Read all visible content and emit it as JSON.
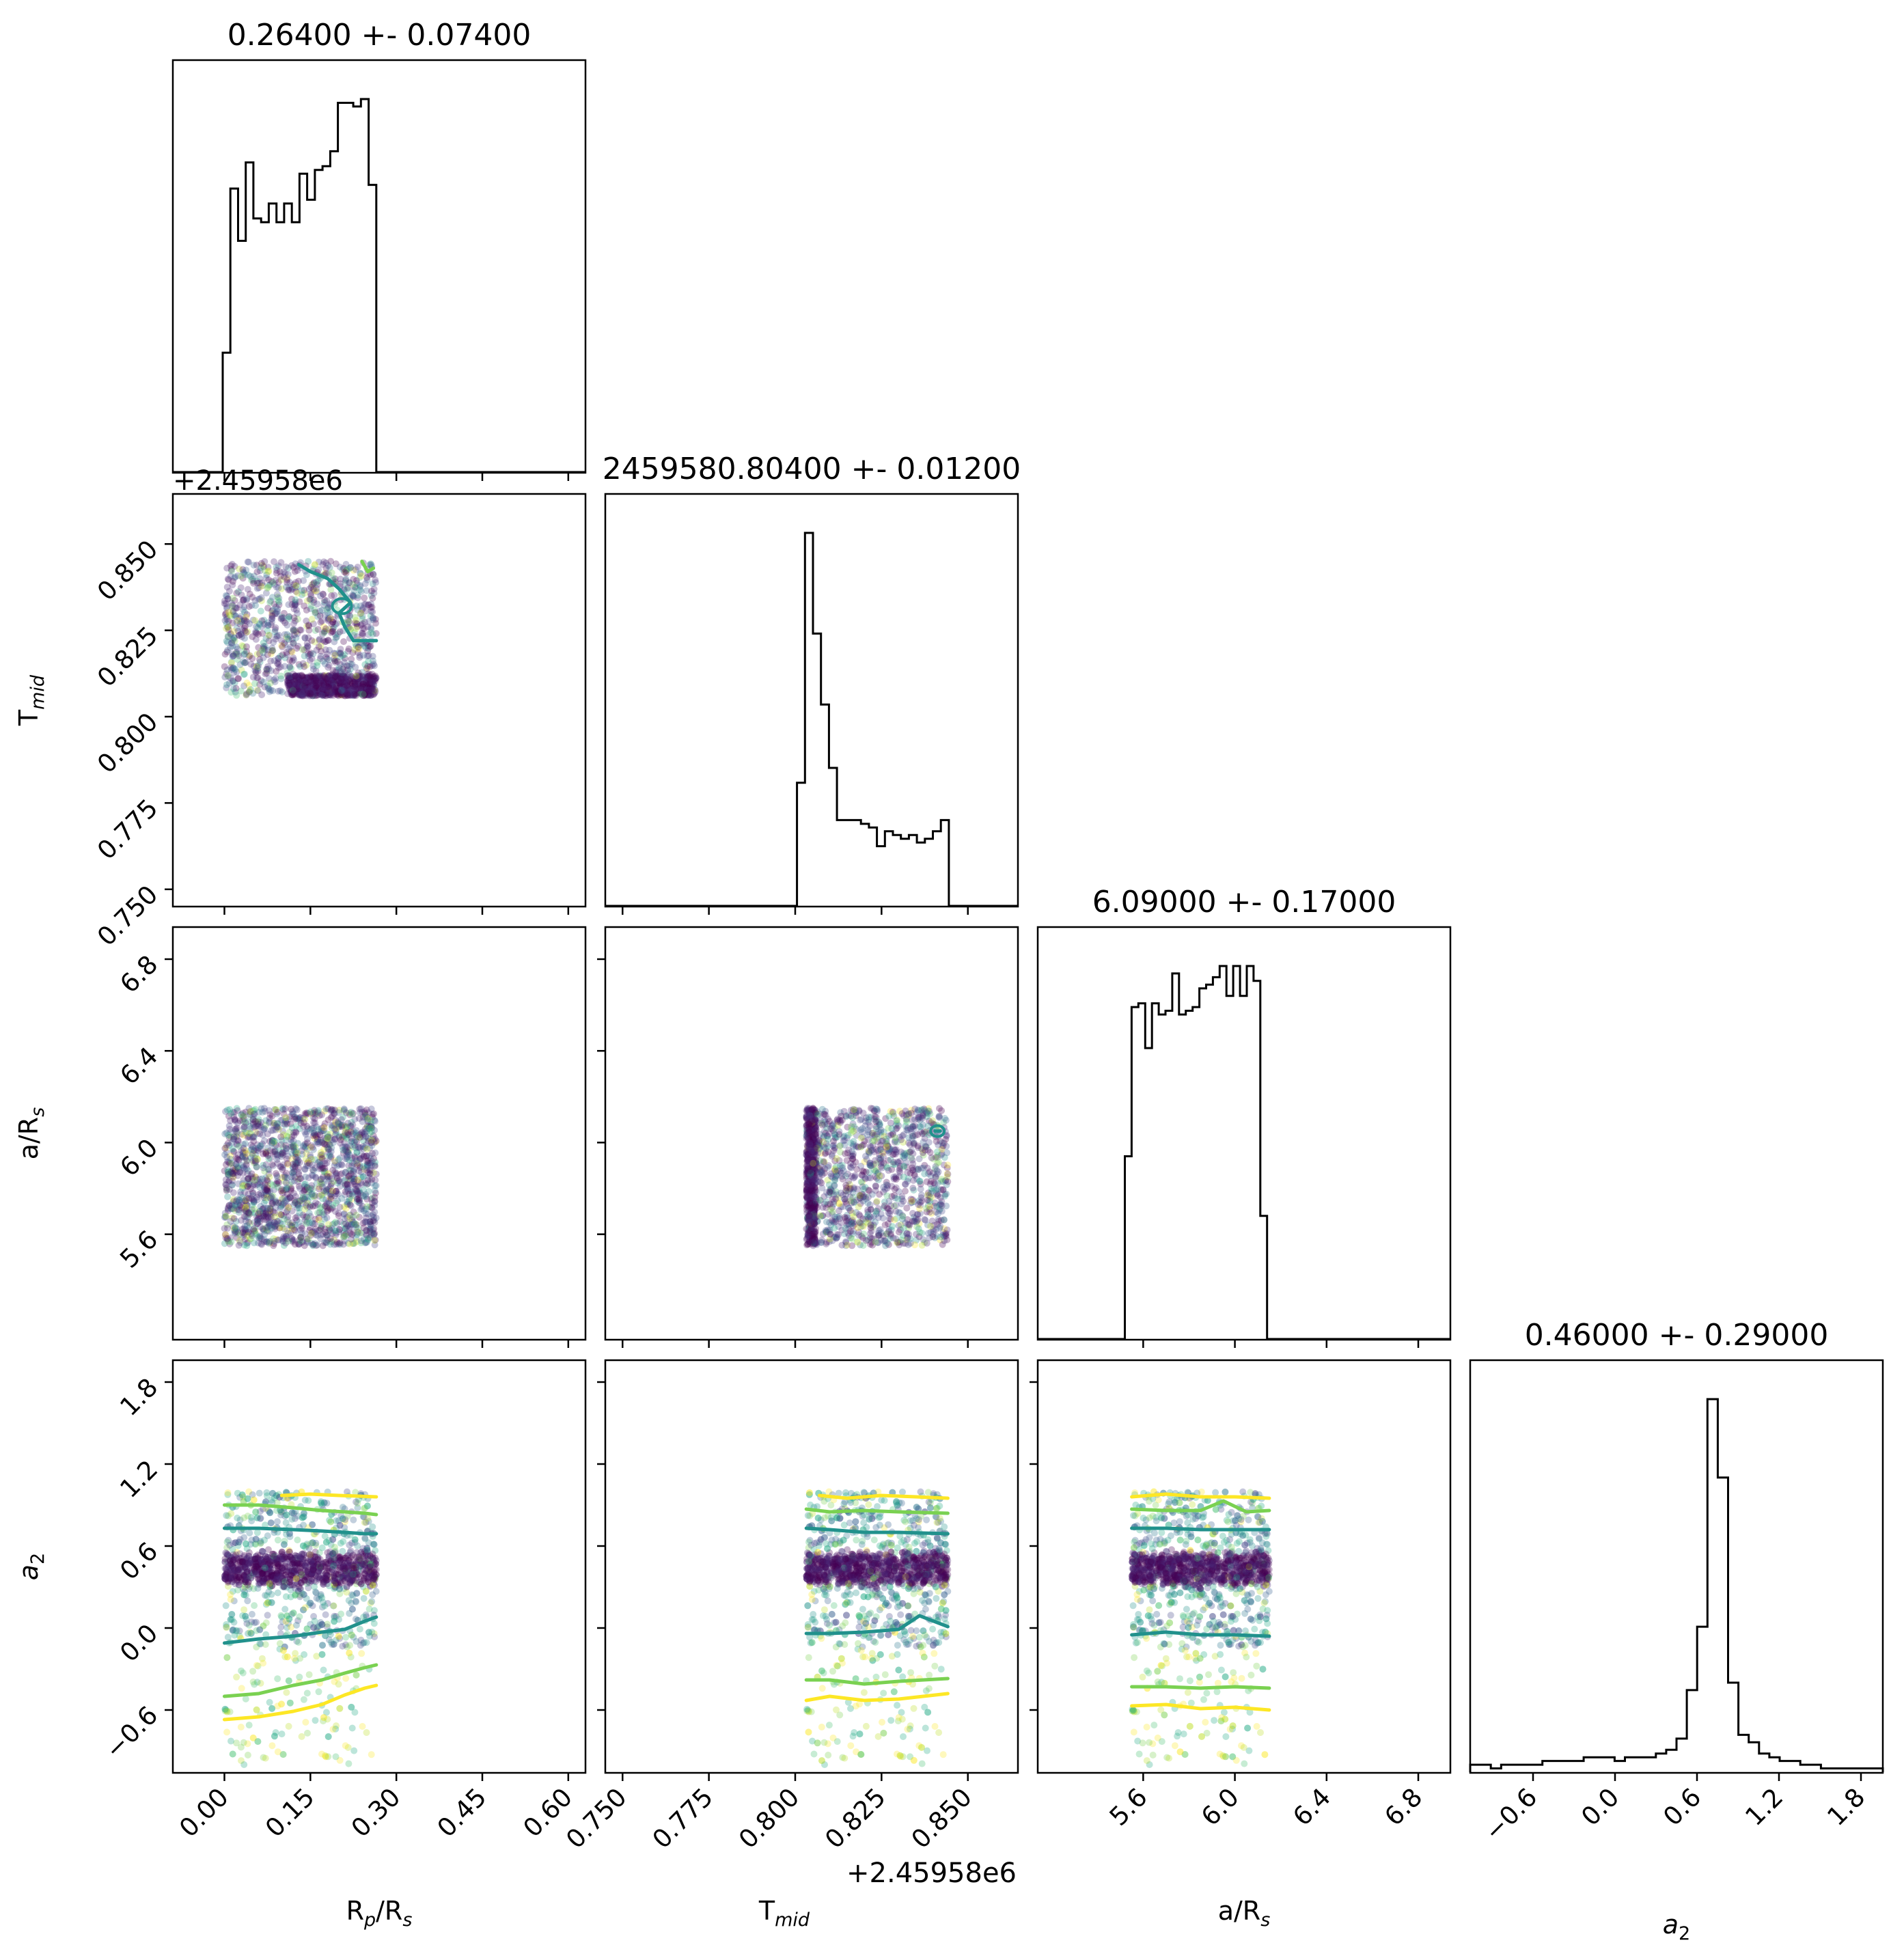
{
  "chart_data": {
    "type": "corner",
    "parameters": [
      {
        "key": "rp",
        "label_main": "R",
        "label_sub1": "p",
        "label_mid": "/R",
        "label_sub2": "s",
        "range": [
          -0.09,
          0.63
        ],
        "ticks": [
          0.0,
          0.15,
          0.3,
          0.45,
          0.6
        ],
        "tick_labels": [
          "0.00",
          "0.15",
          "0.30",
          "0.45",
          "0.60"
        ],
        "offset": ""
      },
      {
        "key": "tmid",
        "label_main": "T",
        "label_sub1": "mid",
        "label_mid": "",
        "label_sub2": "",
        "range": [
          0.745,
          0.8645
        ],
        "ticks": [
          0.75,
          0.775,
          0.8,
          0.825,
          0.85
        ],
        "tick_labels": [
          "0.750",
          "0.775",
          "0.800",
          "0.825",
          "0.850"
        ],
        "offset": "+2.45958e6"
      },
      {
        "key": "ars",
        "label_main": "a/R",
        "label_sub1": "",
        "label_mid": "",
        "label_sub2": "s",
        "range": [
          5.14,
          6.94
        ],
        "ticks": [
          5.6,
          6.0,
          6.4,
          6.8
        ],
        "tick_labels": [
          "5.6",
          "6.0",
          "6.4",
          "6.8"
        ],
        "offset": ""
      },
      {
        "key": "a2",
        "label_main": "a",
        "label_sub1": "",
        "label_mid": "",
        "label_sub2": "2",
        "range": [
          -1.06,
          1.96
        ],
        "ticks": [
          -0.6,
          0.0,
          0.6,
          1.2,
          1.8
        ],
        "tick_labels": [
          "−0.6",
          "0.0",
          "0.6",
          "1.2",
          "1.8"
        ],
        "offset": ""
      }
    ],
    "titles": [
      "0.26400 +- 0.07400",
      "2459580.80400 +- 0.01200",
      "6.09000 +- 0.17000",
      "0.46000 +- 0.29000"
    ],
    "histograms": [
      {
        "param": "rp",
        "bin_edges": [
          -0.003,
          0.265
        ],
        "counts": [
          0.32,
          0.76,
          0.62,
          0.83,
          0.68,
          0.67,
          0.72,
          0.67,
          0.72,
          0.67,
          0.8,
          0.73,
          0.81,
          0.82,
          0.86,
          0.99,
          0.99,
          0.98,
          1.0,
          0.77
        ]
      },
      {
        "param": "tmid",
        "bin_edges": [
          0.7982,
          0.8445
        ],
        "counts": [
          0.0,
          0.33,
          1.0,
          0.73,
          0.54,
          0.37,
          0.23,
          0.23,
          0.23,
          0.22,
          0.21,
          0.16,
          0.2,
          0.19,
          0.18,
          0.19,
          0.17,
          0.18,
          0.2,
          0.23
        ]
      },
      {
        "param": "ars",
        "bin_edges": [
          5.52,
          6.17
        ],
        "counts": [
          0.49,
          0.89,
          0.9,
          0.78,
          0.9,
          0.87,
          0.88,
          0.98,
          0.87,
          0.88,
          0.89,
          0.94,
          0.95,
          0.97,
          1.0,
          0.92,
          1.0,
          0.92,
          1.0,
          0.96,
          0.33,
          0.0
        ]
      },
      {
        "param": "a2",
        "bin_edges": [
          -1.06,
          1.96
        ],
        "counts": [
          0.02,
          0.02,
          0.01,
          0.02,
          0.02,
          0.02,
          0.02,
          0.03,
          0.03,
          0.03,
          0.03,
          0.04,
          0.04,
          0.04,
          0.03,
          0.04,
          0.04,
          0.04,
          0.05,
          0.06,
          0.09,
          0.22,
          0.39,
          1.0,
          0.79,
          0.24,
          0.1,
          0.08,
          0.05,
          0.04,
          0.03,
          0.03,
          0.02,
          0.02,
          0.01,
          0.01,
          0.01,
          0.01,
          0.01,
          0.01
        ]
      }
    ],
    "scatter_panels": [
      {
        "x": "rp",
        "y": "tmid",
        "x_range": [
          0.0,
          0.265
        ],
        "y_range": [
          0.806,
          0.845
        ],
        "dense_y": [
          0.806,
          0.812
        ],
        "dense_x_start": 0.11
      },
      {
        "x": "rp",
        "y": "ars",
        "x_range": [
          0.0,
          0.265
        ],
        "y_range": [
          5.55,
          6.15
        ]
      },
      {
        "x": "tmid",
        "y": "ars",
        "x_range": [
          0.8032,
          0.8442
        ],
        "y_range": [
          5.55,
          6.15
        ],
        "dense_x": [
          0.8032,
          0.806
        ]
      },
      {
        "x": "rp",
        "y": "a2",
        "x_range": [
          0.0,
          0.265
        ],
        "y_range": [
          -1.0,
          1.0
        ],
        "band": [
          0.33,
          0.54
        ]
      },
      {
        "x": "tmid",
        "y": "a2",
        "x_range": [
          0.8032,
          0.8442
        ],
        "y_range": [
          -1.0,
          1.0
        ],
        "band": [
          0.33,
          0.54
        ]
      },
      {
        "x": "ars",
        "y": "a2",
        "x_range": [
          5.55,
          6.15
        ],
        "y_range": [
          -1.0,
          1.0
        ],
        "band": [
          0.33,
          0.54
        ]
      }
    ],
    "contour_levels": {
      "colors": [
        "#21918c",
        "#7ad151",
        "#fde725"
      ],
      "rp_a2": [
        {
          "color": "#21918c",
          "x": [
            0.0,
            0.06,
            0.12,
            0.17,
            0.21,
            0.245,
            0.265
          ],
          "y": [
            0.73,
            0.73,
            0.72,
            0.71,
            0.7,
            0.69,
            0.69
          ]
        },
        {
          "color": "#7ad151",
          "x": [
            0.0,
            0.06,
            0.12,
            0.17,
            0.21,
            0.245,
            0.265
          ],
          "y": [
            0.9,
            0.9,
            0.88,
            0.86,
            0.85,
            0.84,
            0.83
          ]
        },
        {
          "color": "#fde725",
          "x": [
            0.1,
            0.15,
            0.2,
            0.265
          ],
          "y": [
            0.97,
            0.98,
            0.97,
            0.96
          ]
        },
        {
          "color": "#21918c",
          "x": [
            0.0,
            0.06,
            0.12,
            0.17,
            0.21,
            0.245,
            0.265
          ],
          "y": [
            -0.11,
            -0.08,
            -0.06,
            -0.03,
            -0.01,
            0.05,
            0.08
          ]
        },
        {
          "color": "#7ad151",
          "x": [
            0.0,
            0.06,
            0.12,
            0.17,
            0.21,
            0.245,
            0.265
          ],
          "y": [
            -0.5,
            -0.48,
            -0.42,
            -0.38,
            -0.33,
            -0.29,
            -0.27
          ]
        },
        {
          "color": "#fde725",
          "x": [
            0.0,
            0.06,
            0.12,
            0.17,
            0.21,
            0.245,
            0.265
          ],
          "y": [
            -0.67,
            -0.65,
            -0.61,
            -0.56,
            -0.49,
            -0.44,
            -0.42
          ]
        }
      ],
      "tmid_a2": [
        {
          "color": "#21918c",
          "x": [
            0.8032,
            0.81,
            0.82,
            0.83,
            0.8442
          ],
          "y": [
            0.73,
            0.72,
            0.7,
            0.7,
            0.69
          ]
        },
        {
          "color": "#7ad151",
          "x": [
            0.8032,
            0.81,
            0.82,
            0.83,
            0.8442
          ],
          "y": [
            0.87,
            0.85,
            0.86,
            0.85,
            0.84
          ]
        },
        {
          "color": "#fde725",
          "x": [
            0.807,
            0.815,
            0.825,
            0.835,
            0.8442
          ],
          "y": [
            0.97,
            0.95,
            0.97,
            0.96,
            0.95
          ]
        },
        {
          "color": "#21918c",
          "x": [
            0.8032,
            0.81,
            0.82,
            0.83,
            0.836,
            0.8442
          ],
          "y": [
            -0.04,
            -0.04,
            -0.03,
            -0.01,
            0.09,
            0.01
          ]
        },
        {
          "color": "#7ad151",
          "x": [
            0.8032,
            0.81,
            0.82,
            0.83,
            0.8442
          ],
          "y": [
            -0.38,
            -0.38,
            -0.41,
            -0.39,
            -0.37
          ]
        },
        {
          "color": "#fde725",
          "x": [
            0.8032,
            0.81,
            0.82,
            0.83,
            0.8442
          ],
          "y": [
            -0.53,
            -0.5,
            -0.53,
            -0.52,
            -0.48
          ]
        }
      ],
      "ars_a2": [
        {
          "color": "#21918c",
          "x": [
            5.55,
            5.7,
            5.85,
            6.0,
            6.15
          ],
          "y": [
            0.73,
            0.73,
            0.72,
            0.72,
            0.72
          ]
        },
        {
          "color": "#7ad151",
          "x": [
            5.55,
            5.7,
            5.85,
            5.95,
            6.05,
            6.15
          ],
          "y": [
            0.87,
            0.86,
            0.86,
            0.93,
            0.85,
            0.86
          ]
        },
        {
          "color": "#fde725",
          "x": [
            5.55,
            5.7,
            5.85,
            6.0,
            6.15
          ],
          "y": [
            0.96,
            0.98,
            0.96,
            0.96,
            0.95
          ]
        },
        {
          "color": "#21918c",
          "x": [
            5.55,
            5.7,
            5.85,
            6.0,
            6.15
          ],
          "y": [
            -0.05,
            -0.03,
            -0.05,
            -0.05,
            -0.06
          ]
        },
        {
          "color": "#7ad151",
          "x": [
            5.55,
            5.7,
            5.85,
            6.0,
            6.15
          ],
          "y": [
            -0.43,
            -0.43,
            -0.44,
            -0.43,
            -0.44
          ]
        },
        {
          "color": "#fde725",
          "x": [
            5.55,
            5.7,
            5.85,
            6.0,
            6.15
          ],
          "y": [
            -0.57,
            -0.56,
            -0.59,
            -0.58,
            -0.6
          ]
        }
      ],
      "rp_tmid": [
        {
          "color": "#21918c",
          "x": [
            0.13,
            0.15,
            0.18,
            0.2,
            0.22,
            0.2,
            0.21,
            0.225,
            0.265
          ],
          "y": [
            0.844,
            0.842,
            0.84,
            0.837,
            0.833,
            0.83,
            0.826,
            0.822,
            0.822
          ]
        },
        {
          "color": "#7ad151",
          "x": [
            0.24,
            0.25,
            0.26
          ],
          "y": [
            0.845,
            0.842,
            0.843
          ]
        }
      ],
      "tmid_ars": [
        {
          "color": "#21918c",
          "x": [
            0.8405,
            0.842
          ],
          "y": [
            6.05,
            6.05
          ]
        }
      ]
    },
    "colormap": "viridis",
    "point_alpha": 0.3,
    "grid": false
  }
}
